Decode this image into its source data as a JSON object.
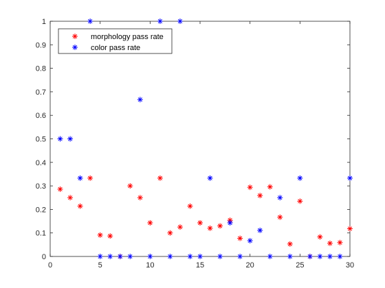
{
  "chart_data": {
    "type": "scatter",
    "title": "",
    "xlabel": "",
    "ylabel": "",
    "xlim": [
      0,
      30
    ],
    "ylim": [
      0,
      1
    ],
    "x_ticks": [
      0,
      5,
      10,
      15,
      20,
      25,
      30
    ],
    "x_tick_labels": [
      "0",
      "5",
      "10",
      "15",
      "20",
      "25",
      "30"
    ],
    "y_ticks": [
      0,
      0.1,
      0.2,
      0.3,
      0.4,
      0.5,
      0.6,
      0.7,
      0.8,
      0.9,
      1
    ],
    "y_tick_labels": [
      "0",
      "0.1",
      "0.2",
      "0.3",
      "0.4",
      "0.5",
      "0.6",
      "0.7",
      "0.8",
      "0.9",
      "1"
    ],
    "grid": false,
    "legend_location": "top-left",
    "marker": "asterisk",
    "series": [
      {
        "name": "morphology pass rate",
        "color": "#ff0000",
        "points": [
          [
            1,
            0.286
          ],
          [
            2,
            0.25
          ],
          [
            3,
            0.214
          ],
          [
            4,
            0.333
          ],
          [
            5,
            0.091
          ],
          [
            6,
            0.087
          ],
          [
            7,
            0
          ],
          [
            8,
            0.3
          ],
          [
            9,
            0.25
          ],
          [
            10,
            0.143
          ],
          [
            11,
            0.333
          ],
          [
            12,
            0.1
          ],
          [
            13,
            0.125
          ],
          [
            14,
            0.214
          ],
          [
            15,
            0.143
          ],
          [
            16,
            0.12
          ],
          [
            17,
            0.13
          ],
          [
            18,
            0.154
          ],
          [
            19,
            0.077
          ],
          [
            20,
            0.294
          ],
          [
            21,
            0.259
          ],
          [
            22,
            0.296
          ],
          [
            23,
            0.167
          ],
          [
            24,
            0.053
          ],
          [
            25,
            0.235
          ],
          [
            26,
            0
          ],
          [
            27,
            0.083
          ],
          [
            28,
            0.056
          ],
          [
            29,
            0.059
          ],
          [
            30,
            0.118
          ]
        ]
      },
      {
        "name": "color pass rate",
        "color": "#0000ff",
        "points": [
          [
            1,
            0.5
          ],
          [
            2,
            0.5
          ],
          [
            3,
            0.333
          ],
          [
            4,
            1
          ],
          [
            5,
            0
          ],
          [
            6,
            0
          ],
          [
            7,
            0
          ],
          [
            8,
            0
          ],
          [
            9,
            0.667
          ],
          [
            10,
            0
          ],
          [
            11,
            1
          ],
          [
            12,
            0
          ],
          [
            13,
            1
          ],
          [
            14,
            0
          ],
          [
            15,
            0
          ],
          [
            16,
            0.333
          ],
          [
            17,
            0
          ],
          [
            18,
            0.143
          ],
          [
            19,
            0
          ],
          [
            20,
            0.067
          ],
          [
            21,
            0.111
          ],
          [
            22,
            0
          ],
          [
            23,
            0.25
          ],
          [
            24,
            0
          ],
          [
            25,
            0.333
          ],
          [
            26,
            0
          ],
          [
            27,
            0
          ],
          [
            28,
            0
          ],
          [
            29,
            0
          ],
          [
            30,
            0.333
          ]
        ]
      }
    ]
  }
}
